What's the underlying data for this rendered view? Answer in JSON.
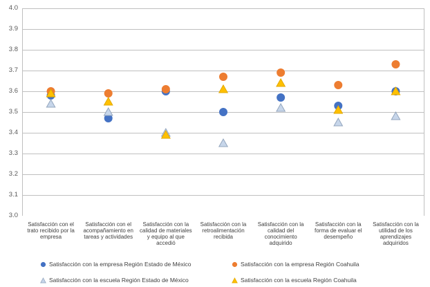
{
  "chart_data": {
    "type": "scatter",
    "title": "",
    "xlabel": "",
    "ylabel": "",
    "ylim": [
      3.0,
      4.0
    ],
    "ytick_step": 0.1,
    "grid": true,
    "legend_position": "bottom",
    "grid_color": "#BFBFBF",
    "categories": [
      "Satisfacción con el trato recibido por la empresa",
      "Satisfacción con el acompañamiento en tareas y actividades",
      "Satisfacción con la calidad de materiales y equipo al que accedió",
      "Satisfacción con la retroalimentación recibida",
      "Satisfacción con la calidad del conocimiento adquirido",
      "Satisfacción con la forma de evaluar el desempeño",
      "Satisfacción con la utilidad de los aprendizajes adquiridos"
    ],
    "series": [
      {
        "name": "Satisfacción con la empresa Región Estado de México",
        "marker": "circle",
        "color": "#4472C4",
        "border_color": "#4472C4",
        "values": [
          3.58,
          3.47,
          3.6,
          3.5,
          3.57,
          3.53,
          3.6
        ]
      },
      {
        "name": "Satisfacción con la empresa Región Coahuila",
        "marker": "circle",
        "color": "#ED7D31",
        "border_color": "#ED7D31",
        "values": [
          3.6,
          3.59,
          3.61,
          3.67,
          3.69,
          3.63,
          3.73
        ]
      },
      {
        "name": "Satisfacción con la escuela Región Estado de México",
        "marker": "triangle",
        "color": "#C7D6EA",
        "border_color": "#93A5BD",
        "values": [
          3.54,
          3.5,
          3.4,
          3.35,
          3.52,
          3.45,
          3.48
        ]
      },
      {
        "name": "Satisfacción con la escuela Región Coahuila",
        "marker": "triangle",
        "color": "#FFC000",
        "border_color": "#E2A800",
        "values": [
          3.59,
          3.55,
          3.39,
          3.61,
          3.64,
          3.51,
          3.6
        ]
      }
    ]
  }
}
